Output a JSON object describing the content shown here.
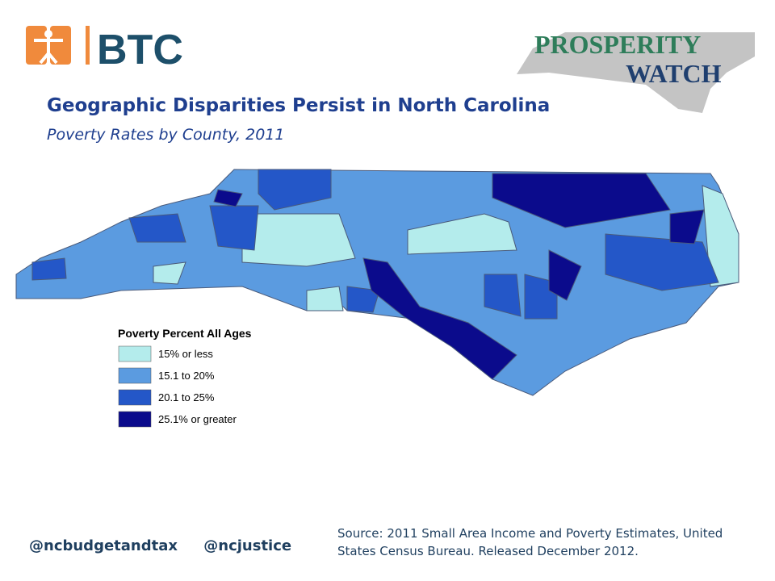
{
  "header": {
    "logo_text": "BTC",
    "badge_line1": "PROSPERITY",
    "badge_line2": "WATCH"
  },
  "title": "Geographic Disparities Persist in North Carolina",
  "subtitle": "Poverty Rates by County, 2011",
  "legend": {
    "title": "Poverty Percent All Ages",
    "items": [
      {
        "label": "15% or less",
        "color": "#b4ecec"
      },
      {
        "label": "15.1 to 20%",
        "color": "#5b9be0"
      },
      {
        "label": "20.1 to 25%",
        "color": "#2457c8"
      },
      {
        "label": "25.1% or greater",
        "color": "#0b0b8c"
      }
    ]
  },
  "footer": {
    "handles": [
      "@ncbudgetandtax",
      "@ncjustice"
    ],
    "source": "Source: 2011 Small Area Income and Poverty Estimates, United States Census Bureau. Released December 2012."
  }
}
